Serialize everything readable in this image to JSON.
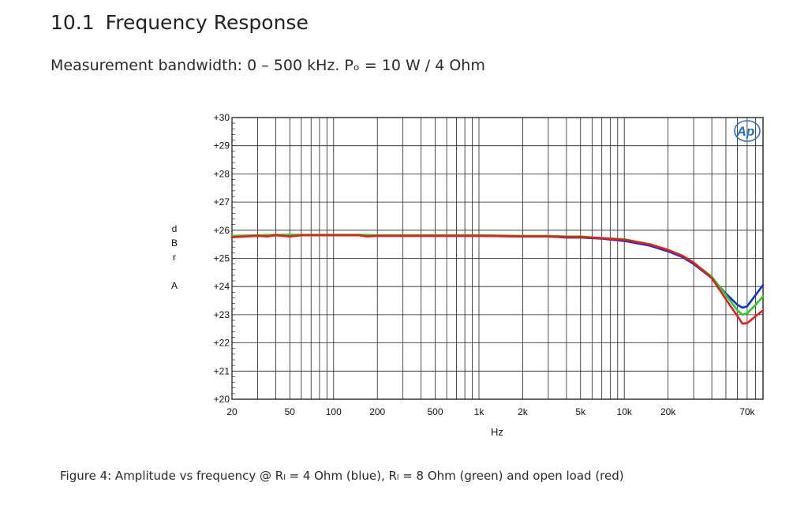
{
  "section": {
    "number": "10.1",
    "title": "Frequency Response",
    "subtitle": "Measurement bandwidth: 0 – 500 kHz. Pₒ = 10 W / 4 Ohm"
  },
  "logo_text": "Ap",
  "caption": "Figure 4: Amplitude vs frequency @ Rₗ = 4 Ohm (blue), Rₗ = 8 Ohm (green) and open load (red)",
  "chart_data": {
    "type": "line",
    "title": "",
    "xlabel": "Hz",
    "ylabel": "dBr A",
    "ylabel_chars": [
      "d",
      "B",
      "r",
      "",
      "A"
    ],
    "xscale": "log",
    "xlim": [
      20,
      90000
    ],
    "ylim": [
      20,
      30
    ],
    "grid": true,
    "x_ticks": [
      {
        "value": 20,
        "label": "20"
      },
      {
        "value": 50,
        "label": "50"
      },
      {
        "value": 100,
        "label": "100"
      },
      {
        "value": 200,
        "label": "200"
      },
      {
        "value": 500,
        "label": "500"
      },
      {
        "value": 1000,
        "label": "1k"
      },
      {
        "value": 2000,
        "label": "2k"
      },
      {
        "value": 5000,
        "label": "5k"
      },
      {
        "value": 10000,
        "label": "10k"
      },
      {
        "value": 20000,
        "label": "20k"
      },
      {
        "value": 70000,
        "label": "70k"
      }
    ],
    "y_ticks": [
      {
        "value": 30,
        "label": "+30"
      },
      {
        "value": 29,
        "label": "+29"
      },
      {
        "value": 28,
        "label": "+28"
      },
      {
        "value": 27,
        "label": "+27"
      },
      {
        "value": 26,
        "label": "+26"
      },
      {
        "value": 25,
        "label": "+25"
      },
      {
        "value": 24,
        "label": "+24"
      },
      {
        "value": 23,
        "label": "+23"
      },
      {
        "value": 22,
        "label": "+22"
      },
      {
        "value": 21,
        "label": "+21"
      },
      {
        "value": 20,
        "label": "+20"
      }
    ],
    "series": [
      {
        "color": "#1030e0",
        "points": [
          [
            20,
            25.78
          ],
          [
            30,
            25.8
          ],
          [
            40,
            25.82
          ],
          [
            60,
            25.82
          ],
          [
            100,
            25.82
          ],
          [
            150,
            25.82
          ],
          [
            200,
            25.8
          ],
          [
            500,
            25.8
          ],
          [
            1000,
            25.8
          ],
          [
            2000,
            25.78
          ],
          [
            3000,
            25.78
          ],
          [
            4000,
            25.74
          ],
          [
            5000,
            25.74
          ],
          [
            7000,
            25.7
          ],
          [
            10000,
            25.62
          ],
          [
            15000,
            25.45
          ],
          [
            20000,
            25.25
          ],
          [
            25000,
            25.05
          ],
          [
            30000,
            24.8
          ],
          [
            40000,
            24.3
          ],
          [
            50000,
            23.75
          ],
          [
            60000,
            23.35
          ],
          [
            65000,
            23.25
          ],
          [
            70000,
            23.3
          ],
          [
            80000,
            23.7
          ],
          [
            90000,
            24.05
          ]
        ]
      },
      {
        "color": "#22d022",
        "points": [
          [
            20,
            25.8
          ],
          [
            30,
            25.82
          ],
          [
            40,
            25.84
          ],
          [
            60,
            25.84
          ],
          [
            100,
            25.84
          ],
          [
            150,
            25.84
          ],
          [
            200,
            25.82
          ],
          [
            500,
            25.82
          ],
          [
            1000,
            25.82
          ],
          [
            2000,
            25.8
          ],
          [
            3000,
            25.8
          ],
          [
            4000,
            25.78
          ],
          [
            5000,
            25.78
          ],
          [
            7000,
            25.72
          ],
          [
            10000,
            25.68
          ],
          [
            15000,
            25.5
          ],
          [
            20000,
            25.3
          ],
          [
            25000,
            25.1
          ],
          [
            30000,
            24.85
          ],
          [
            40000,
            24.35
          ],
          [
            50000,
            23.7
          ],
          [
            60000,
            23.15
          ],
          [
            65000,
            23.0
          ],
          [
            70000,
            23.05
          ],
          [
            80000,
            23.35
          ],
          [
            90000,
            23.65
          ]
        ]
      },
      {
        "color": "#f01818",
        "points": [
          [
            20,
            25.75
          ],
          [
            25,
            25.78
          ],
          [
            30,
            25.8
          ],
          [
            35,
            25.78
          ],
          [
            40,
            25.82
          ],
          [
            50,
            25.78
          ],
          [
            60,
            25.82
          ],
          [
            100,
            25.82
          ],
          [
            150,
            25.82
          ],
          [
            170,
            25.78
          ],
          [
            200,
            25.8
          ],
          [
            500,
            25.8
          ],
          [
            1000,
            25.8
          ],
          [
            2000,
            25.78
          ],
          [
            3000,
            25.78
          ],
          [
            4000,
            25.76
          ],
          [
            5000,
            25.76
          ],
          [
            7000,
            25.72
          ],
          [
            10000,
            25.66
          ],
          [
            15000,
            25.5
          ],
          [
            20000,
            25.3
          ],
          [
            25000,
            25.1
          ],
          [
            30000,
            24.85
          ],
          [
            40000,
            24.3
          ],
          [
            50000,
            23.55
          ],
          [
            60000,
            22.95
          ],
          [
            65000,
            22.68
          ],
          [
            70000,
            22.7
          ],
          [
            80000,
            22.95
          ],
          [
            90000,
            23.15
          ]
        ]
      }
    ]
  }
}
